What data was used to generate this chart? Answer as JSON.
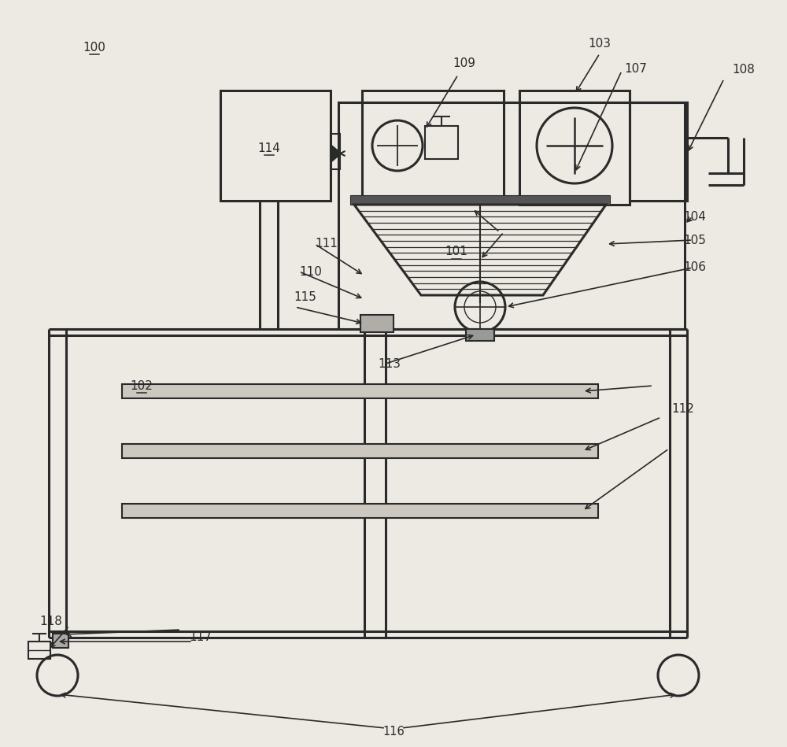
{
  "bg_color": "#ede9e3",
  "line_color": "#2a2a2a",
  "label_color": "#2a2a2a",
  "figsize": [
    10.0,
    9.49
  ],
  "dpi": 100
}
